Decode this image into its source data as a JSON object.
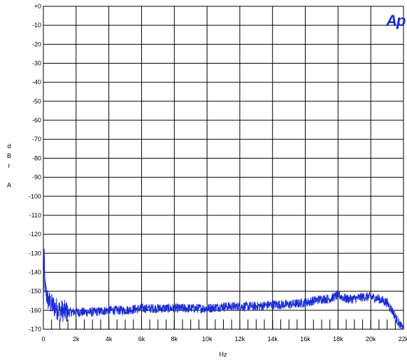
{
  "chart_data": {
    "type": "line",
    "title": "",
    "logo_text": "Ap",
    "xlabel": "Hz",
    "ylabel_letters": [
      "d",
      "B",
      "r",
      "",
      "A"
    ],
    "xlim": [
      0,
      22000
    ],
    "ylim": [
      -170,
      0
    ],
    "x_ticks": [
      0,
      2000,
      4000,
      6000,
      8000,
      10000,
      12000,
      14000,
      16000,
      18000,
      20000,
      22000
    ],
    "x_tick_labels": [
      "0",
      "2k",
      "4k",
      "6k",
      "8k",
      "10k",
      "12k",
      "14k",
      "16k",
      "18k",
      "20k",
      "22k"
    ],
    "y_ticks": [
      0,
      -10,
      -20,
      -30,
      -40,
      -50,
      -60,
      -70,
      -80,
      -90,
      -100,
      -110,
      -120,
      -130,
      -140,
      -150,
      -160,
      -170
    ],
    "y_tick_labels": [
      "+0",
      "-10",
      "-20",
      "-30",
      "-40",
      "-50",
      "-60",
      "-70",
      "-80",
      "-90",
      "-100",
      "-110",
      "-120",
      "-130",
      "-140",
      "-150",
      "-160",
      "-170"
    ],
    "grid": true,
    "line_color": "#1a2bd6",
    "series": [
      {
        "x": [
          0,
          50,
          100,
          200,
          300,
          500,
          800,
          1000,
          1500,
          2000,
          3000,
          4000,
          5000,
          6000,
          7000,
          8000,
          9000,
          10000,
          11000,
          12000,
          13000,
          14000,
          15000,
          16000,
          16500,
          17000,
          17500,
          18000,
          18500,
          19000,
          19500,
          20000,
          20500,
          21000,
          21300,
          21600,
          21800,
          22000
        ],
        "values": [
          -160,
          -132,
          -148,
          -152,
          -155,
          -157,
          -159,
          -160,
          -161,
          -161,
          -161,
          -160,
          -160,
          -159,
          -159,
          -159,
          -159,
          -159,
          -158,
          -158,
          -158,
          -157,
          -157,
          -156,
          -155,
          -154,
          -154,
          -152,
          -154,
          -154,
          -153,
          -153,
          -154,
          -156,
          -160,
          -165,
          -168,
          -170
        ]
      }
    ]
  }
}
